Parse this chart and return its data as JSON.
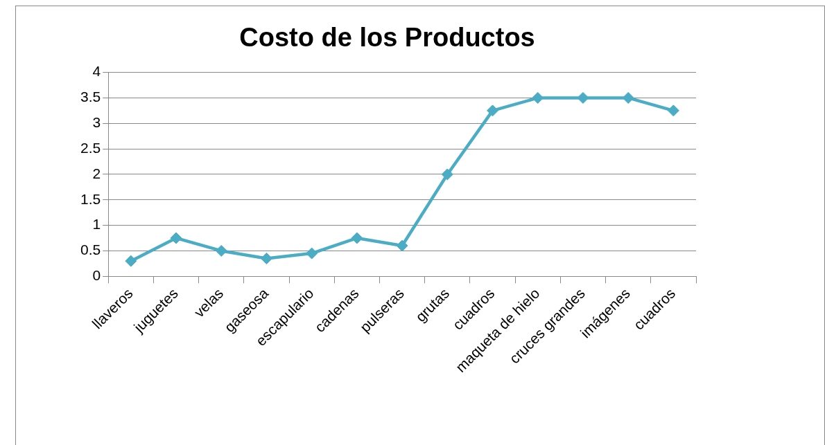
{
  "chart_data": {
    "type": "line",
    "title": "Costo de los Productos",
    "categories": [
      "llaveros",
      "juguetes",
      "velas",
      "gaseosa",
      "escapulario",
      "cadenas",
      "pulseras",
      "grutas",
      "cuadros",
      "maqueta de hielo",
      "cruces grandes",
      "imágenes",
      "cuadros"
    ],
    "series": [
      {
        "color": "#4bacc6",
        "values": [
          0.3,
          0.75,
          0.5,
          0.35,
          0.45,
          0.75,
          0.6,
          2,
          3.25,
          3.5,
          3.5,
          3.5,
          3.25
        ]
      }
    ],
    "ylim": [
      0,
      4
    ],
    "yticks": [
      0,
      0.5,
      1,
      1.5,
      2,
      2.5,
      3,
      3.5,
      4
    ],
    "grid": "y",
    "marker": "diamond",
    "line_style": "solid"
  }
}
